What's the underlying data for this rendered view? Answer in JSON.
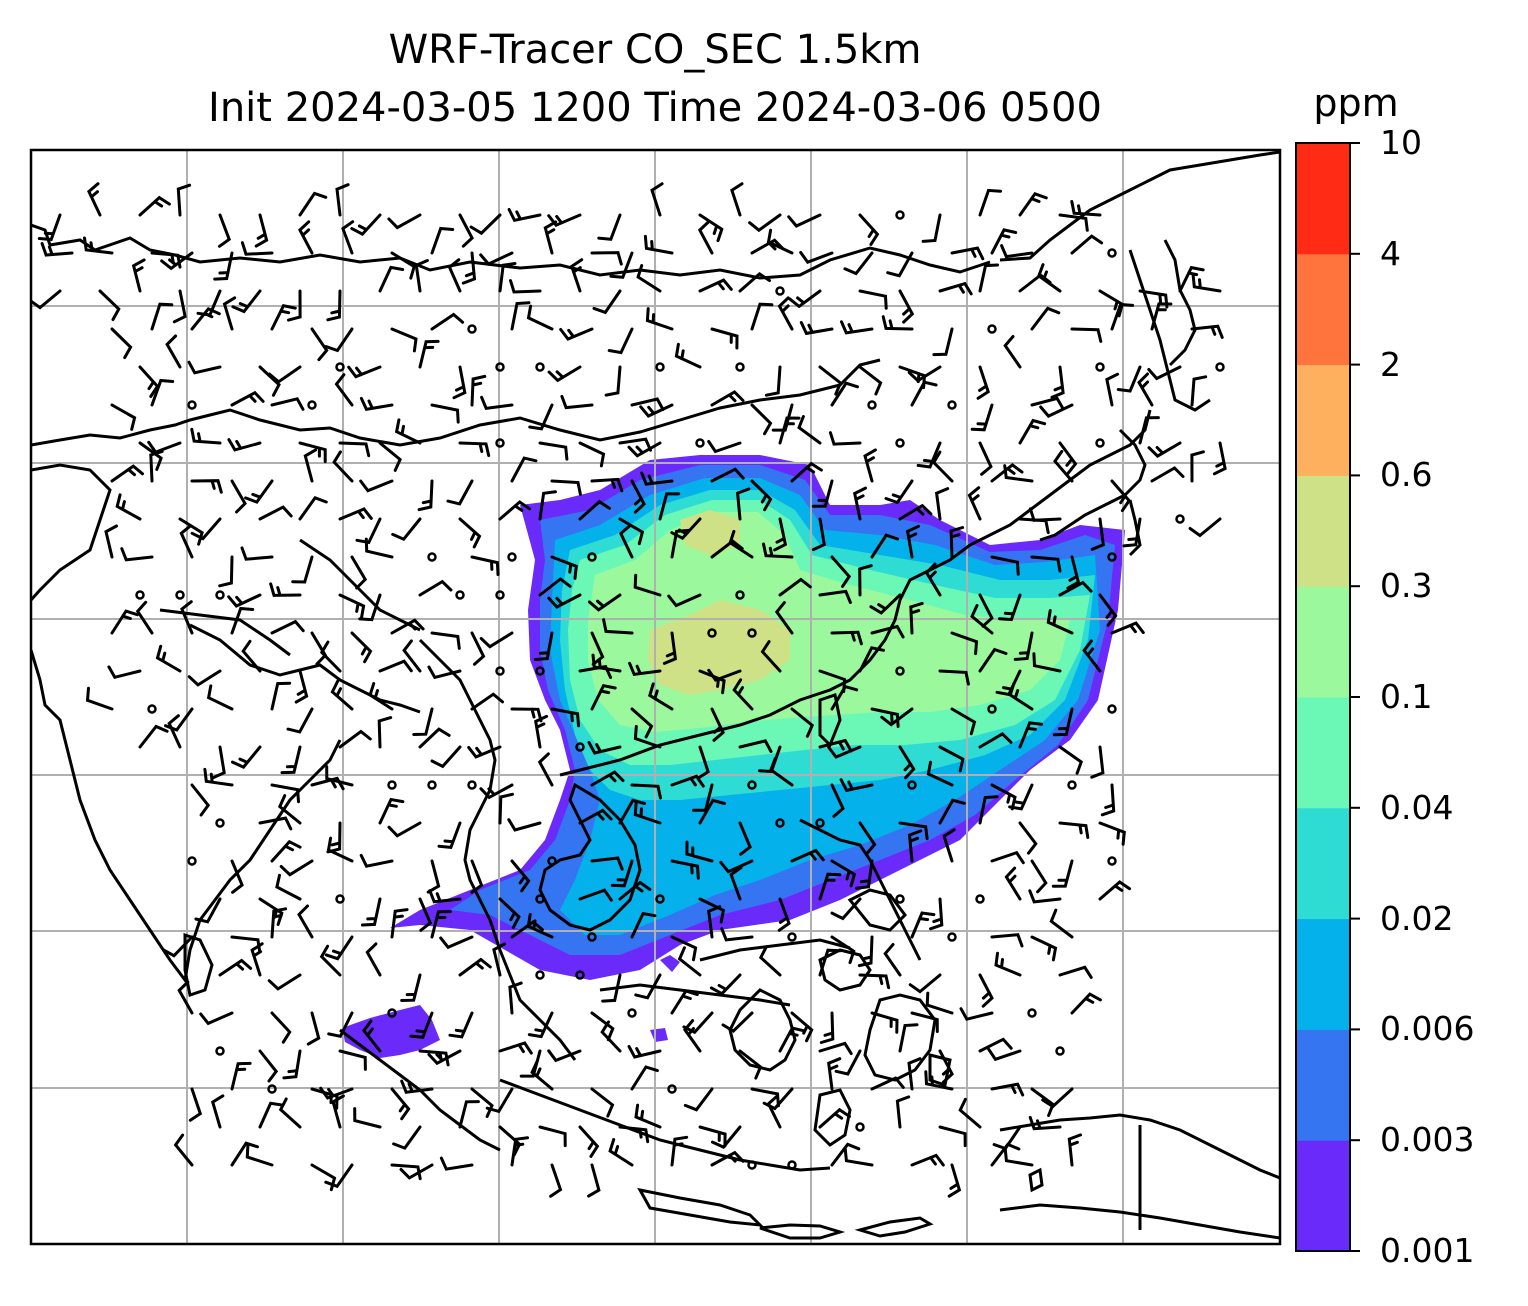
{
  "title": {
    "line1": "WRF-Tracer CO_SEC 1.5km",
    "line2": "Init 2024-03-05 1200 Time 2024-03-06 0500"
  },
  "colorbar": {
    "unit": "ppm",
    "levels": [
      "0.001",
      "0.003",
      "0.006",
      "0.02",
      "0.04",
      "0.1",
      "0.3",
      "0.6",
      "2",
      "4",
      "10"
    ],
    "colors": [
      "#6a2afa",
      "#3575f2",
      "#05b1ea",
      "#2fdcd3",
      "#6bf8b6",
      "#9cf89c",
      "#cfe186",
      "#ffb05f",
      "#ff743c",
      "#ff2b15"
    ]
  },
  "map": {
    "field": "CO_SEC tracer concentration at 1.5km with wind barbs",
    "gridlines": true,
    "colors": {
      "coastline": "#000000",
      "gridline": "#b0b0b0",
      "barb": "#000000"
    }
  }
}
